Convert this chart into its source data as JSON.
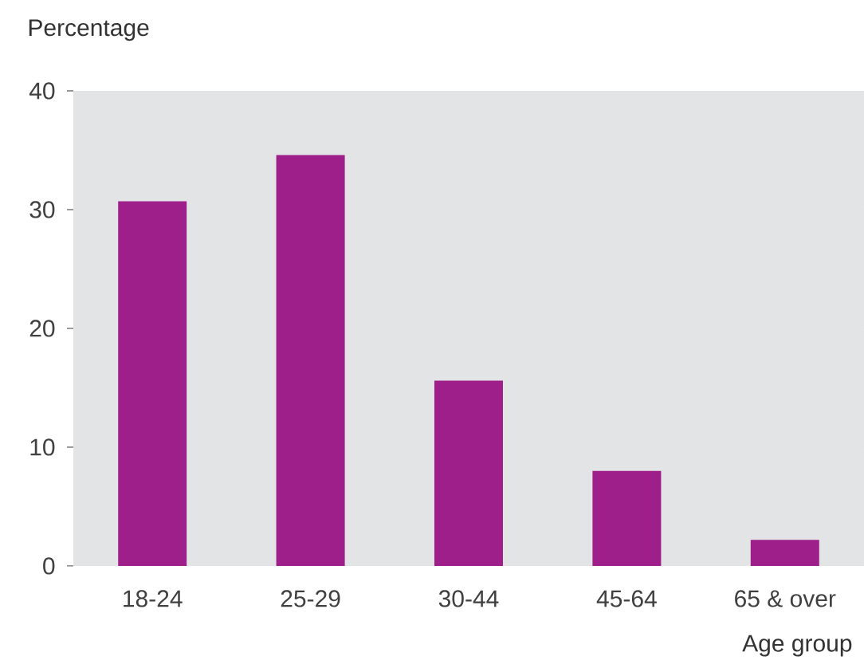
{
  "chart_data": {
    "type": "bar",
    "xlabel": "Age group",
    "ylabel": "Percentage",
    "categories": [
      "18-24",
      "25-29",
      "30-44",
      "45-64",
      "65 & over"
    ],
    "values": [
      30.7,
      34.6,
      15.6,
      8.0,
      2.2
    ],
    "color": "#9e1f8a",
    "ylim": [
      0,
      40
    ],
    "yticks": [
      0,
      10,
      20,
      30,
      40
    ]
  }
}
